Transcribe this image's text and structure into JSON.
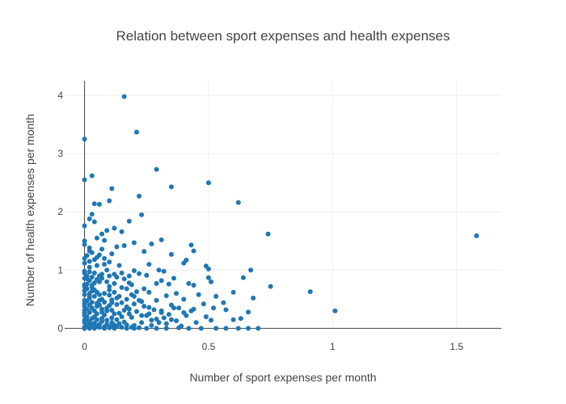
{
  "chart_data": {
    "type": "scatter",
    "title": "Relation between sport expenses and health expenses",
    "xlabel": "Number of sport expenses per month",
    "ylabel": "Number of health expenses per month",
    "xlim": [
      -0.08,
      1.68
    ],
    "ylim": [
      -0.05,
      4.25
    ],
    "x_ticks": [
      0,
      0.5,
      1,
      1.5
    ],
    "x_tick_labels": [
      "0",
      "0.5",
      "1",
      "1.5"
    ],
    "y_ticks": [
      0,
      1,
      2,
      3,
      4
    ],
    "y_tick_labels": [
      "0",
      "1",
      "2",
      "3",
      "4"
    ],
    "grid": true,
    "zero_lines": true,
    "legend": "none",
    "marker_color": "#1f77b4",
    "points": [
      [
        0.16,
        3.98
      ],
      [
        0.0,
        3.25
      ],
      [
        0.21,
        3.37
      ],
      [
        0.0,
        2.55
      ],
      [
        0.03,
        2.62
      ],
      [
        0.29,
        2.73
      ],
      [
        0.5,
        2.5
      ],
      [
        0.35,
        2.43
      ],
      [
        0.11,
        2.4
      ],
      [
        0.22,
        2.27
      ],
      [
        0.04,
        2.14
      ],
      [
        0.06,
        2.13
      ],
      [
        0.1,
        2.19
      ],
      [
        0.62,
        2.16
      ],
      [
        0.03,
        1.96
      ],
      [
        0.02,
        1.88
      ],
      [
        0.04,
        1.83
      ],
      [
        0.23,
        1.95
      ],
      [
        0.0,
        1.76
      ],
      [
        0.18,
        1.84
      ],
      [
        0.12,
        1.72
      ],
      [
        0.09,
        1.68
      ],
      [
        0.15,
        1.66
      ],
      [
        0.07,
        1.62
      ],
      [
        0.74,
        1.62
      ],
      [
        1.58,
        1.59
      ],
      [
        0.0,
        1.5
      ],
      [
        0.05,
        1.55
      ],
      [
        0.08,
        1.51
      ],
      [
        0.31,
        1.52
      ],
      [
        0.2,
        1.47
      ],
      [
        0.27,
        1.45
      ],
      [
        0.43,
        1.43
      ],
      [
        0.44,
        1.33
      ],
      [
        0.0,
        1.44
      ],
      [
        0.02,
        1.38
      ],
      [
        0.07,
        1.36
      ],
      [
        0.13,
        1.4
      ],
      [
        0.16,
        1.42
      ],
      [
        0.24,
        1.32
      ],
      [
        0.35,
        1.27
      ],
      [
        0.11,
        1.28
      ],
      [
        0.05,
        1.22
      ],
      [
        0.0,
        1.2
      ],
      [
        0.41,
        1.17
      ],
      [
        0.4,
        1.12
      ],
      [
        0.49,
        1.07
      ],
      [
        0.26,
        1.1
      ],
      [
        0.02,
        1.05
      ],
      [
        0.14,
        1.08
      ],
      [
        0.08,
        1.1
      ],
      [
        0.5,
        1.02
      ],
      [
        0.67,
        1.0
      ],
      [
        0.3,
        1.0
      ],
      [
        0.32,
        0.98
      ],
      [
        0.2,
        0.99
      ],
      [
        0.09,
        1.0
      ],
      [
        0.0,
        0.98
      ],
      [
        0.04,
        0.95
      ],
      [
        0.12,
        0.93
      ],
      [
        0.22,
        0.94
      ],
      [
        0.25,
        0.91
      ],
      [
        0.5,
        0.87
      ],
      [
        0.64,
        0.87
      ],
      [
        0.36,
        0.86
      ],
      [
        0.31,
        0.82
      ],
      [
        0.51,
        0.8
      ],
      [
        0.42,
        0.77
      ],
      [
        0.44,
        0.74
      ],
      [
        0.75,
        0.72
      ],
      [
        0.29,
        0.77
      ],
      [
        0.34,
        0.76
      ],
      [
        0.18,
        0.78
      ],
      [
        0.06,
        0.8
      ],
      [
        0.0,
        0.75
      ],
      [
        0.03,
        0.71
      ],
      [
        0.15,
        0.7
      ],
      [
        0.24,
        0.68
      ],
      [
        0.1,
        0.66
      ],
      [
        0.91,
        0.63
      ],
      [
        0.6,
        0.62
      ],
      [
        0.37,
        0.6
      ],
      [
        0.26,
        0.62
      ],
      [
        0.46,
        0.58
      ],
      [
        0.33,
        0.56
      ],
      [
        0.53,
        0.55
      ],
      [
        0.68,
        0.52
      ],
      [
        0.2,
        0.55
      ],
      [
        0.02,
        0.55
      ],
      [
        0.13,
        0.52
      ],
      [
        0.07,
        0.5
      ],
      [
        0.4,
        0.5
      ],
      [
        0.29,
        0.48
      ],
      [
        0.23,
        0.46
      ],
      [
        0.56,
        0.44
      ],
      [
        0.48,
        0.42
      ],
      [
        0.11,
        0.44
      ],
      [
        0.0,
        0.42
      ],
      [
        0.35,
        0.4
      ],
      [
        0.05,
        0.38
      ],
      [
        0.17,
        0.37
      ],
      [
        0.26,
        0.36
      ],
      [
        0.38,
        0.35
      ],
      [
        0.52,
        0.35
      ],
      [
        0.44,
        0.33
      ],
      [
        0.57,
        0.32
      ],
      [
        1.01,
        0.3
      ],
      [
        0.66,
        0.28
      ],
      [
        0.31,
        0.3
      ],
      [
        0.21,
        0.29
      ],
      [
        0.09,
        0.3
      ],
      [
        0.02,
        0.28
      ],
      [
        0.14,
        0.26
      ],
      [
        0.34,
        0.24
      ],
      [
        0.41,
        0.22
      ],
      [
        0.25,
        0.22
      ],
      [
        0.04,
        0.2
      ],
      [
        0.49,
        0.2
      ],
      [
        0.19,
        0.19
      ],
      [
        0.11,
        0.18
      ],
      [
        0.63,
        0.17
      ],
      [
        0.6,
        0.15
      ],
      [
        0.29,
        0.16
      ],
      [
        0.51,
        0.14
      ],
      [
        0.37,
        0.13
      ],
      [
        0.0,
        0.14
      ],
      [
        0.07,
        0.12
      ],
      [
        0.16,
        0.11
      ],
      [
        0.23,
        0.1
      ],
      [
        0.45,
        0.1
      ],
      [
        0.33,
        0.08
      ],
      [
        0.03,
        0.07
      ],
      [
        0.12,
        0.06
      ],
      [
        0.2,
        0.05
      ],
      [
        0.27,
        0.05
      ],
      [
        0.39,
        0.04
      ],
      [
        0.0,
        0.02
      ],
      [
        0.06,
        0.02
      ],
      [
        0.1,
        0.01
      ],
      [
        0.15,
        0.02
      ],
      [
        0.22,
        0.01
      ],
      [
        0.25,
        0.0
      ],
      [
        0.33,
        0.0
      ],
      [
        0.38,
        0.01
      ],
      [
        0.42,
        0.0
      ],
      [
        0.47,
        0.0
      ],
      [
        0.53,
        0.0
      ],
      [
        0.57,
        0.0
      ],
      [
        0.62,
        0.0
      ],
      [
        0.66,
        0.0
      ],
      [
        0.7,
        0.0
      ],
      [
        0.0,
        0.0
      ],
      [
        0.02,
        0.0
      ],
      [
        0.04,
        0.0
      ],
      [
        0.08,
        0.0
      ],
      [
        0.12,
        0.0
      ],
      [
        0.17,
        0.0
      ],
      [
        0.2,
        0.0
      ],
      [
        0.29,
        0.0
      ],
      [
        0.01,
        0.85
      ],
      [
        0.01,
        0.9
      ],
      [
        0.03,
        0.88
      ],
      [
        0.02,
        0.82
      ],
      [
        0.0,
        0.86
      ],
      [
        0.05,
        0.84
      ],
      [
        0.06,
        0.9
      ],
      [
        0.07,
        0.86
      ],
      [
        0.04,
        0.78
      ],
      [
        0.09,
        0.8
      ],
      [
        0.03,
        0.64
      ],
      [
        0.01,
        0.68
      ],
      [
        0.05,
        0.62
      ],
      [
        0.08,
        0.6
      ],
      [
        0.0,
        0.65
      ],
      [
        0.02,
        0.6
      ],
      [
        0.06,
        0.58
      ],
      [
        0.1,
        0.57
      ],
      [
        0.12,
        0.62
      ],
      [
        0.04,
        0.55
      ],
      [
        0.01,
        0.47
      ],
      [
        0.03,
        0.45
      ],
      [
        0.0,
        0.48
      ],
      [
        0.05,
        0.43
      ],
      [
        0.08,
        0.45
      ],
      [
        0.02,
        0.4
      ],
      [
        0.06,
        0.4
      ],
      [
        0.1,
        0.39
      ],
      [
        0.13,
        0.41
      ],
      [
        0.15,
        0.44
      ],
      [
        0.01,
        0.33
      ],
      [
        0.03,
        0.35
      ],
      [
        0.0,
        0.31
      ],
      [
        0.04,
        0.3
      ],
      [
        0.07,
        0.33
      ],
      [
        0.09,
        0.35
      ],
      [
        0.11,
        0.31
      ],
      [
        0.02,
        0.27
      ],
      [
        0.05,
        0.25
      ],
      [
        0.08,
        0.23
      ],
      [
        0.01,
        0.2
      ],
      [
        0.0,
        0.22
      ],
      [
        0.03,
        0.17
      ],
      [
        0.05,
        0.15
      ],
      [
        0.07,
        0.17
      ],
      [
        0.09,
        0.14
      ],
      [
        0.13,
        0.15
      ],
      [
        0.02,
        0.11
      ],
      [
        0.04,
        0.09
      ],
      [
        0.06,
        0.07
      ],
      [
        0.01,
        0.05
      ],
      [
        0.03,
        0.03
      ],
      [
        0.05,
        0.04
      ],
      [
        0.08,
        0.03
      ],
      [
        0.09,
        0.07
      ],
      [
        0.11,
        0.05
      ],
      [
        0.13,
        0.03
      ],
      [
        0.14,
        0.08
      ],
      [
        0.17,
        0.06
      ],
      [
        0.19,
        0.02
      ],
      [
        0.0,
        1.12
      ],
      [
        0.02,
        1.15
      ],
      [
        0.04,
        1.18
      ],
      [
        0.01,
        1.25
      ],
      [
        0.03,
        1.3
      ],
      [
        0.06,
        1.26
      ],
      [
        0.02,
        1.33
      ],
      [
        0.08,
        1.2
      ],
      [
        0.1,
        1.14
      ],
      [
        0.05,
        1.08
      ],
      [
        0.0,
        0.95
      ],
      [
        0.02,
        0.97
      ],
      [
        0.07,
        0.93
      ],
      [
        0.1,
        0.9
      ],
      [
        0.13,
        0.88
      ],
      [
        0.16,
        0.85
      ],
      [
        0.18,
        0.9
      ],
      [
        0.15,
        0.95
      ],
      [
        0.19,
        0.75
      ],
      [
        0.17,
        0.68
      ],
      [
        0.21,
        0.63
      ],
      [
        0.19,
        0.58
      ],
      [
        0.14,
        0.55
      ],
      [
        0.17,
        0.5
      ],
      [
        0.22,
        0.48
      ],
      [
        0.2,
        0.42
      ],
      [
        0.24,
        0.38
      ],
      [
        0.18,
        0.33
      ],
      [
        0.28,
        0.32
      ],
      [
        0.31,
        0.27
      ],
      [
        0.26,
        0.25
      ],
      [
        0.23,
        0.22
      ],
      [
        0.18,
        0.25
      ],
      [
        0.27,
        0.14
      ],
      [
        0.3,
        0.1
      ],
      [
        0.35,
        0.15
      ],
      [
        0.32,
        0.18
      ],
      [
        0.4,
        0.27
      ],
      [
        0.43,
        0.3
      ],
      [
        0.36,
        0.35
      ],
      [
        0.0,
        0.72
      ],
      [
        0.01,
        0.76
      ],
      [
        0.03,
        0.74
      ],
      [
        0.0,
        0.58
      ],
      [
        0.02,
        0.52
      ],
      [
        0.0,
        0.38
      ],
      [
        0.01,
        0.15
      ],
      [
        0.0,
        0.1
      ],
      [
        0.02,
        0.08
      ],
      [
        0.0,
        0.26
      ],
      [
        0.1,
        0.72
      ],
      [
        0.12,
        0.77
      ],
      [
        0.11,
        0.49
      ],
      [
        0.12,
        0.25
      ],
      [
        0.15,
        0.2
      ],
      [
        0.16,
        0.31
      ],
      [
        0.11,
        0.1
      ],
      [
        0.07,
        0.28
      ],
      [
        0.06,
        0.48
      ],
      [
        0.04,
        0.66
      ]
    ]
  }
}
